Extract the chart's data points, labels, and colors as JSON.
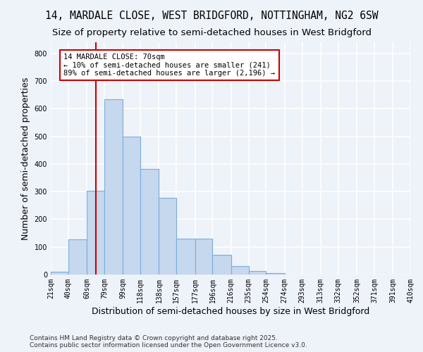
{
  "title": "14, MARDALE CLOSE, WEST BRIDGFORD, NOTTINGHAM, NG2 6SW",
  "subtitle": "Size of property relative to semi-detached houses in West Bridgford",
  "xlabel": "Distribution of semi-detached houses by size in West Bridgford",
  "ylabel": "Number of semi-detached properties",
  "bar_values": [
    10,
    128,
    303,
    635,
    500,
    383,
    278,
    130,
    130,
    72,
    30,
    14,
    5,
    0,
    0,
    0,
    0,
    0,
    0,
    0
  ],
  "bin_edges": [
    21,
    40,
    60,
    79,
    99,
    118,
    138,
    157,
    177,
    196,
    216,
    235,
    254,
    274,
    293,
    313,
    332,
    352,
    371,
    391,
    410
  ],
  "tick_labels": [
    "21sqm",
    "40sqm",
    "60sqm",
    "79sqm",
    "99sqm",
    "118sqm",
    "138sqm",
    "157sqm",
    "177sqm",
    "196sqm",
    "216sqm",
    "235sqm",
    "254sqm",
    "274sqm",
    "293sqm",
    "313sqm",
    "332sqm",
    "352sqm",
    "371sqm",
    "391sqm",
    "410sqm"
  ],
  "bar_color": "#c5d8ee",
  "bar_edge_color": "#7aadda",
  "background_color": "#eef2f9",
  "grid_color": "#ffffff",
  "vline_x": 70,
  "vline_color": "#cc0000",
  "annotation_text": "14 MARDALE CLOSE: 70sqm\n← 10% of semi-detached houses are smaller (241)\n89% of semi-detached houses are larger (2,196) →",
  "annotation_box_color": "#ffffff",
  "annotation_box_edge": "#cc0000",
  "ylim": [
    0,
    840
  ],
  "yticks": [
    0,
    100,
    200,
    300,
    400,
    500,
    600,
    700,
    800
  ],
  "footnote": "Contains HM Land Registry data © Crown copyright and database right 2025.\nContains public sector information licensed under the Open Government Licence v3.0.",
  "title_fontsize": 10.5,
  "subtitle_fontsize": 9.5,
  "axis_label_fontsize": 9,
  "tick_fontsize": 7,
  "footnote_fontsize": 6.5,
  "annot_fontsize": 7.5
}
